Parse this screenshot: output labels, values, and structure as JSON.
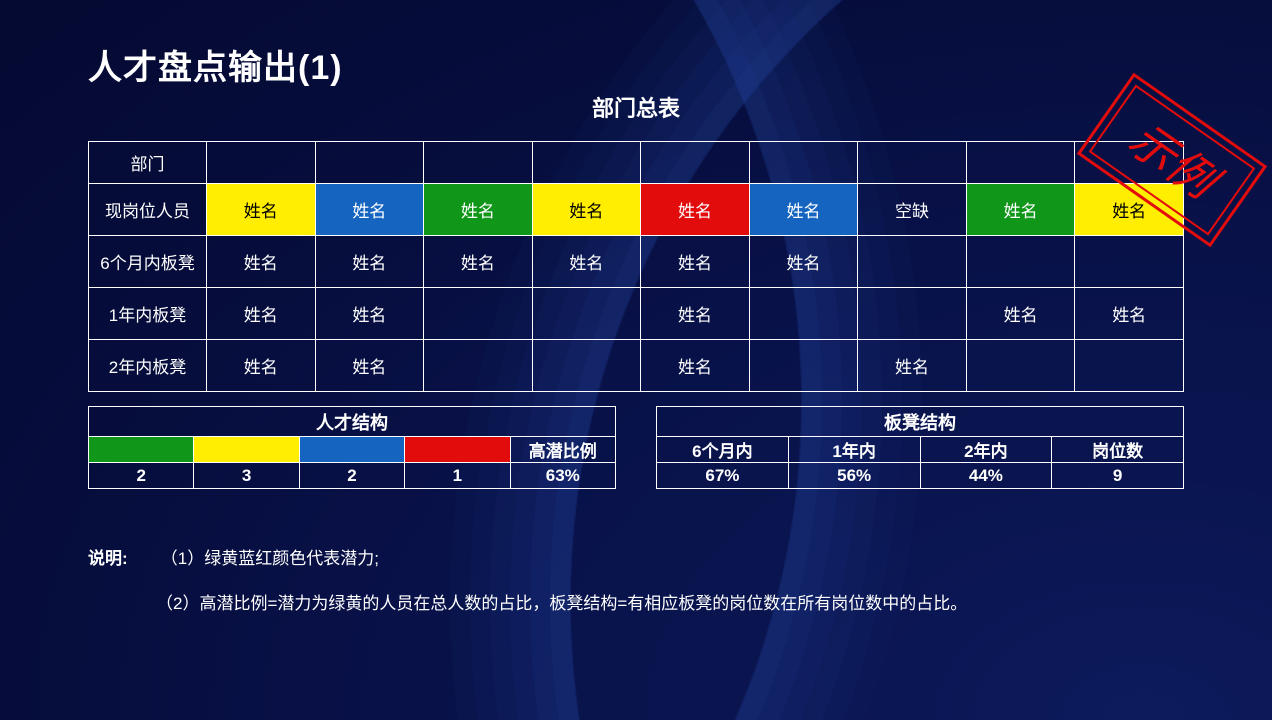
{
  "title": "人才盘点输出(1)",
  "subtitle": "部门总表",
  "stamp_text": "示例",
  "stamp_color": "#e20c0c",
  "colors": {
    "green": "#109618",
    "yellow": "#ffee00",
    "blue": "#1565c0",
    "red": "#e20c0c",
    "border": "#ffffff",
    "text_on_light": "#000000",
    "text_on_dark": "#ffffff",
    "background_deep": "#060d3c"
  },
  "main_table": {
    "row_labels": [
      "部门",
      "现岗位人员",
      "6个月内板凳",
      "1年内板凳",
      "2年内板凳"
    ],
    "rows": [
      [
        {
          "text": ""
        },
        {
          "text": ""
        },
        {
          "text": ""
        },
        {
          "text": ""
        },
        {
          "text": ""
        },
        {
          "text": ""
        },
        {
          "text": ""
        },
        {
          "text": ""
        },
        {
          "text": ""
        }
      ],
      [
        {
          "text": "姓名",
          "bg": "yellow",
          "dark": true
        },
        {
          "text": "姓名",
          "bg": "blue"
        },
        {
          "text": "姓名",
          "bg": "green"
        },
        {
          "text": "姓名",
          "bg": "yellow",
          "dark": true
        },
        {
          "text": "姓名",
          "bg": "red"
        },
        {
          "text": "姓名",
          "bg": "blue"
        },
        {
          "text": "空缺"
        },
        {
          "text": "姓名",
          "bg": "green"
        },
        {
          "text": "姓名",
          "bg": "yellow",
          "dark": true
        }
      ],
      [
        {
          "text": "姓名"
        },
        {
          "text": "姓名"
        },
        {
          "text": "姓名"
        },
        {
          "text": "姓名"
        },
        {
          "text": "姓名"
        },
        {
          "text": "姓名"
        },
        {
          "text": ""
        },
        {
          "text": ""
        },
        {
          "text": ""
        }
      ],
      [
        {
          "text": "姓名"
        },
        {
          "text": "姓名"
        },
        {
          "text": ""
        },
        {
          "text": ""
        },
        {
          "text": "姓名"
        },
        {
          "text": ""
        },
        {
          "text": ""
        },
        {
          "text": "姓名"
        },
        {
          "text": "姓名"
        }
      ],
      [
        {
          "text": "姓名"
        },
        {
          "text": "姓名"
        },
        {
          "text": ""
        },
        {
          "text": ""
        },
        {
          "text": "姓名"
        },
        {
          "text": ""
        },
        {
          "text": "姓名"
        },
        {
          "text": ""
        },
        {
          "text": ""
        }
      ]
    ]
  },
  "talent_structure": {
    "title": "人才结构",
    "columns": [
      {
        "bg": "green",
        "value": "2"
      },
      {
        "bg": "yellow",
        "value": "3"
      },
      {
        "bg": "blue",
        "value": "2"
      },
      {
        "bg": "red",
        "value": "1"
      },
      {
        "label": "高潜比例",
        "value": "63%"
      }
    ]
  },
  "bench_structure": {
    "title": "板凳结构",
    "columns": [
      {
        "label": "6个月内",
        "value": "67%"
      },
      {
        "label": "1年内",
        "value": "56%"
      },
      {
        "label": "2年内",
        "value": "44%"
      },
      {
        "label": "岗位数",
        "value": "9"
      }
    ]
  },
  "notes": {
    "lead": "说明:",
    "line1": "（1）绿黄蓝红颜色代表潜力;",
    "line2": "（2）高潜比例=潜力为绿黄的人员在总人数的占比，板凳结构=有相应板凳的岗位数在所有岗位数中的占比。"
  }
}
